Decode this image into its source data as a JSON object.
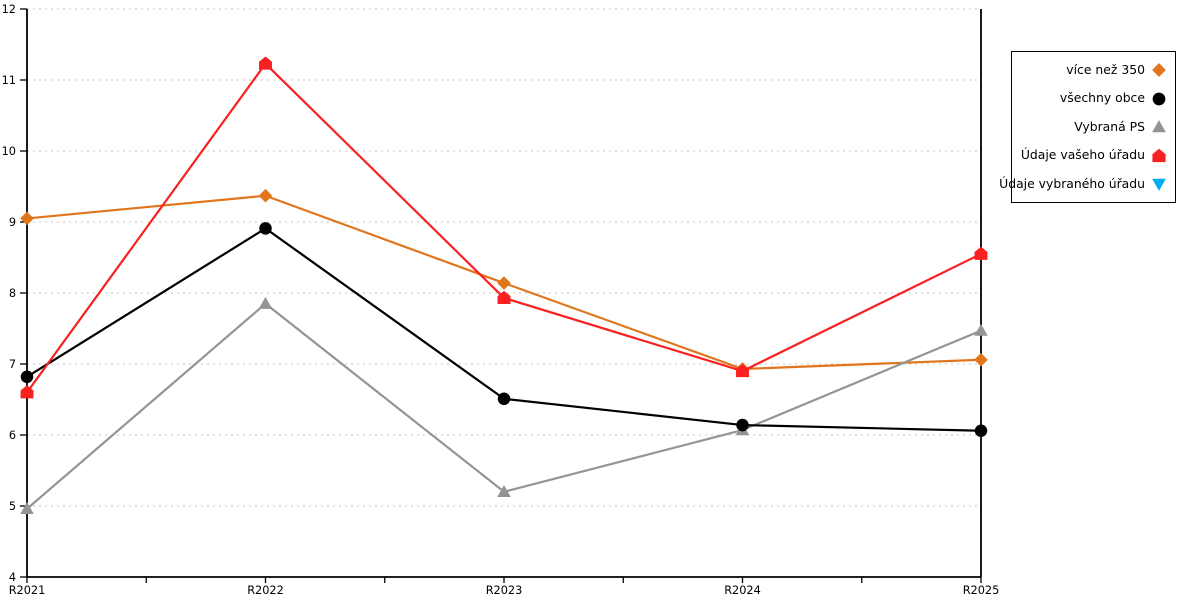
{
  "chart_data": {
    "type": "line",
    "title": "",
    "xlabel": "",
    "ylabel": "",
    "categories": [
      "R2021",
      "R2022",
      "R2023",
      "R2024",
      "R2025"
    ],
    "ylim": [
      4,
      12
    ],
    "ytick_step": 1,
    "yticks": [
      4,
      5,
      6,
      7,
      8,
      9,
      10,
      11,
      12
    ],
    "grid": "horizontal-dotted",
    "gridline_color": "#c4c4c4",
    "axis_color": "#000000",
    "background": "#ffffff",
    "legend_position": "outside-right",
    "minor_xticks_between_categories": true,
    "series": [
      {
        "name": "více než 350",
        "color": "#E0751C",
        "marker": "diamond",
        "z": 1,
        "values": [
          9.05,
          9.37,
          8.14,
          6.93,
          7.06
        ]
      },
      {
        "name": "všechny obce",
        "color": "#000000",
        "marker": "circle",
        "z": 3,
        "values": [
          6.82,
          8.91,
          6.51,
          6.14,
          6.06
        ]
      },
      {
        "name": "Vybraná PS",
        "color": "#949494",
        "marker": "triangle-up",
        "z": 2,
        "values": [
          4.96,
          7.85,
          5.2,
          6.07,
          7.47
        ]
      },
      {
        "name": "Údaje vašeho úřadu",
        "color": "#F82021",
        "marker": "pentagon",
        "z": 4,
        "values": [
          6.6,
          11.23,
          7.93,
          6.9,
          8.55
        ]
      },
      {
        "name": "Údaje vybraného úřadu",
        "color": "#00AEEF",
        "marker": "triangle-down",
        "z": 5,
        "values": []
      }
    ]
  }
}
